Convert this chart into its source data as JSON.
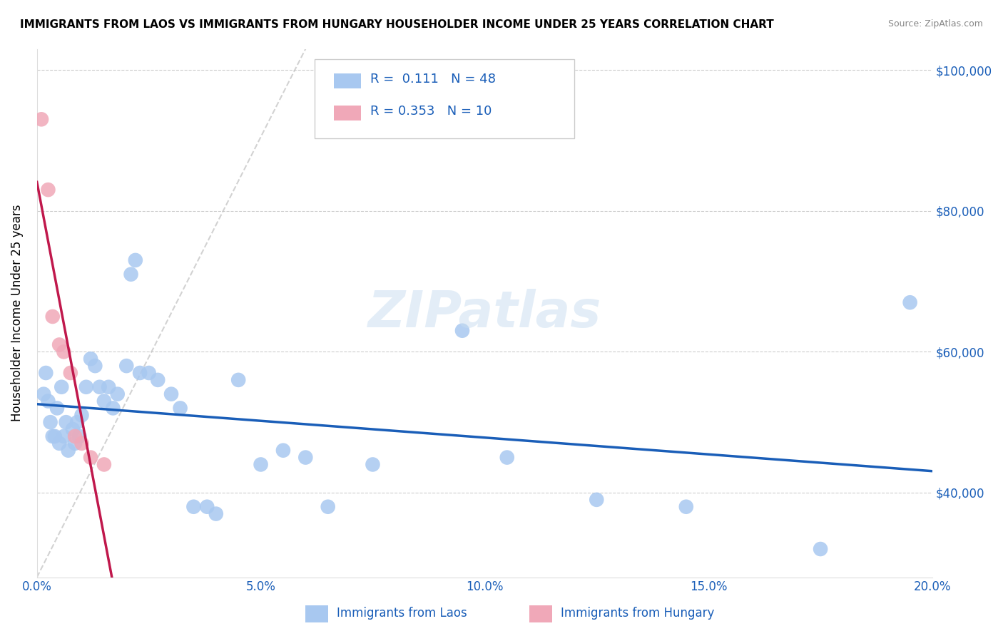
{
  "title": "IMMIGRANTS FROM LAOS VS IMMIGRANTS FROM HUNGARY HOUSEHOLDER INCOME UNDER 25 YEARS CORRELATION CHART",
  "source": "Source: ZipAtlas.com",
  "xlabel_ticks": [
    "0.0%",
    "5.0%",
    "10.0%",
    "15.0%",
    "20.0%"
  ],
  "xlabel_vals": [
    0.0,
    5.0,
    10.0,
    15.0,
    20.0
  ],
  "ylabel": "Householder Income Under 25 years",
  "ylabel_ticks_labels": [
    "$40,000",
    "$60,000",
    "$80,000",
    "$100,000"
  ],
  "ylabel_ticks_vals": [
    40000,
    60000,
    80000,
    100000
  ],
  "xmin": 0.0,
  "xmax": 20.0,
  "ymin": 28000,
  "ymax": 103000,
  "watermark": "ZIPatlas",
  "legend_r_laos": "0.111",
  "legend_n_laos": "48",
  "legend_r_hungary": "0.353",
  "legend_n_hungary": "10",
  "laos_color": "#a8c8f0",
  "hungary_color": "#f0a8b8",
  "laos_trend_color": "#1a5eb8",
  "hungary_trend_color": "#c0184c",
  "diagonal_color": "#c0c0c0",
  "laos_x": [
    0.15,
    0.2,
    0.25,
    0.3,
    0.35,
    0.4,
    0.45,
    0.5,
    0.55,
    0.6,
    0.65,
    0.7,
    0.8,
    0.85,
    0.9,
    0.95,
    1.0,
    1.1,
    1.2,
    1.3,
    1.4,
    1.5,
    1.6,
    1.7,
    1.8,
    2.0,
    2.1,
    2.2,
    2.3,
    2.5,
    2.7,
    3.0,
    3.2,
    3.5,
    3.8,
    4.0,
    4.5,
    5.0,
    5.5,
    6.0,
    6.5,
    7.5,
    9.5,
    10.5,
    12.5,
    14.5,
    17.5,
    19.5
  ],
  "laos_y": [
    54000,
    57000,
    53000,
    50000,
    48000,
    48000,
    52000,
    47000,
    55000,
    48000,
    50000,
    46000,
    49000,
    47000,
    50000,
    48000,
    51000,
    55000,
    59000,
    58000,
    55000,
    53000,
    55000,
    52000,
    54000,
    58000,
    71000,
    73000,
    57000,
    57000,
    56000,
    54000,
    52000,
    38000,
    38000,
    37000,
    56000,
    44000,
    46000,
    45000,
    38000,
    44000,
    63000,
    45000,
    39000,
    38000,
    32000,
    67000
  ],
  "hungary_x": [
    0.1,
    0.25,
    0.35,
    0.5,
    0.6,
    0.75,
    0.85,
    1.0,
    1.2,
    1.5
  ],
  "hungary_y": [
    93000,
    83000,
    65000,
    61000,
    60000,
    57000,
    48000,
    47000,
    45000,
    44000
  ]
}
